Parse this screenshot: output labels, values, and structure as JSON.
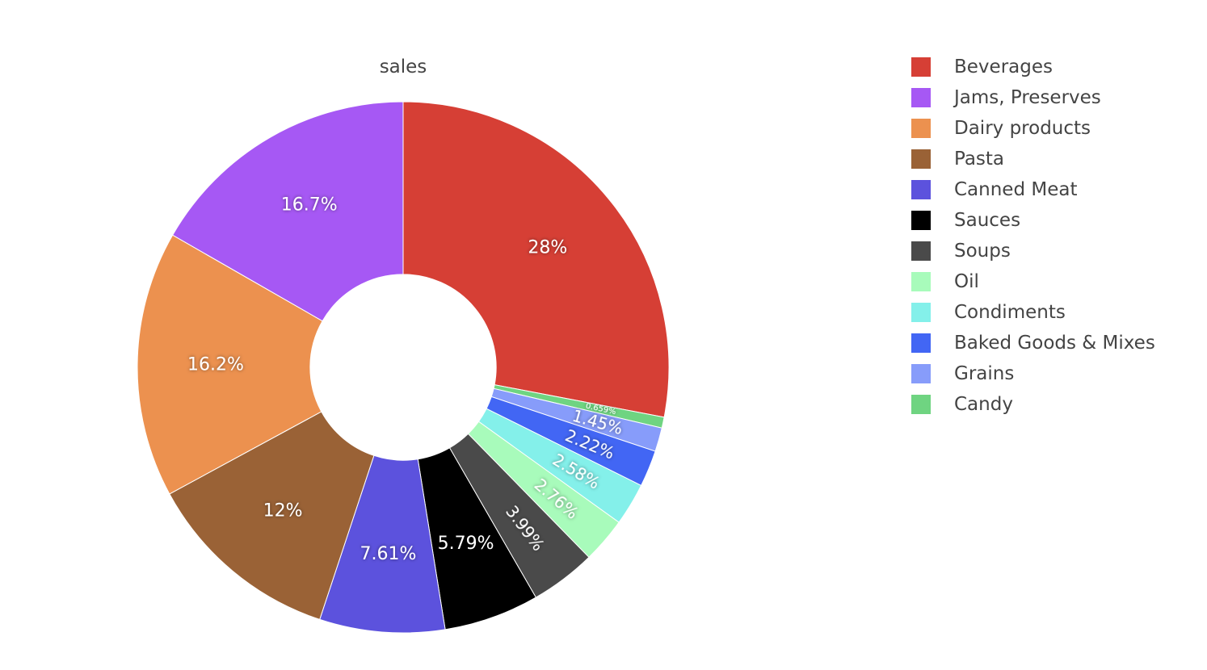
{
  "chart_data": {
    "type": "pie",
    "hole": 0.35,
    "title": "sales",
    "direction": "clockwise",
    "start_angle": "top",
    "legend_position": "right",
    "categories": [
      "Beverages",
      "Jams, Preserves",
      "Dairy products",
      "Pasta",
      "Canned Meat",
      "Sauces",
      "Soups",
      "Oil",
      "Condiments",
      "Baked Goods & Mixes",
      "Grains",
      "Candy"
    ],
    "slice_order": [
      "Beverages",
      "Candy",
      "Grains",
      "Baked Goods & Mixes",
      "Condiments",
      "Oil",
      "Soups",
      "Sauces",
      "Canned Meat",
      "Pasta",
      "Dairy products",
      "Jams, Preserves"
    ],
    "values": {
      "Beverages": 28,
      "Jams, Preserves": 16.7,
      "Dairy products": 16.2,
      "Pasta": 12,
      "Canned Meat": 7.61,
      "Sauces": 5.79,
      "Soups": 3.99,
      "Oil": 2.76,
      "Condiments": 2.58,
      "Baked Goods & Mixes": 2.22,
      "Grains": 1.45,
      "Candy": 0.659
    },
    "labels": {
      "Beverages": "28%",
      "Jams, Preserves": "16.7%",
      "Dairy products": "16.2%",
      "Pasta": "12%",
      "Canned Meat": "7.61%",
      "Sauces": "5.79%",
      "Soups": "3.99%",
      "Oil": "2.76%",
      "Condiments": "2.58%",
      "Baked Goods & Mixes": "2.22%",
      "Grains": "1.45%",
      "Candy": "0.659%"
    },
    "colors": {
      "Beverages": "#d63f35",
      "Jams, Preserves": "#a658f4",
      "Dairy products": "#ec914f",
      "Pasta": "#9a6236",
      "Canned Meat": "#5c52dd",
      "Sauces": "#000000",
      "Soups": "#4a4a4a",
      "Oil": "#a8fbbb",
      "Condiments": "#84f0ea",
      "Baked Goods & Mixes": "#4266f4",
      "Grains": "#879cfa",
      "Candy": "#6fd481"
    }
  }
}
